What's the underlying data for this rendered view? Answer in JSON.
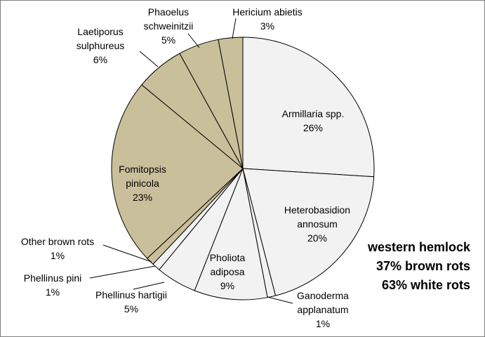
{
  "chart_data": {
    "type": "pie",
    "title": "",
    "slices": [
      {
        "label_lines": [
          "Armillaria spp."
        ],
        "pct_label": "26%",
        "value": 26,
        "rot": "white",
        "color": "#f2f2f2"
      },
      {
        "label_lines": [
          "Heterobasidion",
          "annosum"
        ],
        "pct_label": "20%",
        "value": 20,
        "rot": "white",
        "color": "#f2f2f2"
      },
      {
        "label_lines": [
          "Ganoderma",
          "applanatum"
        ],
        "pct_label": "1%",
        "value": 1,
        "rot": "white",
        "color": "#f2f2f2"
      },
      {
        "label_lines": [
          "Pholiota",
          "adiposa"
        ],
        "pct_label": "9%",
        "value": 9,
        "rot": "white",
        "color": "#f2f2f2"
      },
      {
        "label_lines": [
          "Phellinus hartigii"
        ],
        "pct_label": "5%",
        "value": 5,
        "rot": "white",
        "color": "#f2f2f2"
      },
      {
        "label_lines": [
          "Phellinus pini"
        ],
        "pct_label": "1%",
        "value": 1,
        "rot": "white",
        "color": "#f2f2f2"
      },
      {
        "label_lines": [
          "Other brown rots"
        ],
        "pct_label": "1%",
        "value": 1,
        "rot": "brown",
        "color": "#c9c09b"
      },
      {
        "label_lines": [
          "Fomitopsis",
          "pinicola"
        ],
        "pct_label": "23%",
        "value": 23,
        "rot": "brown",
        "color": "#c9c09b"
      },
      {
        "label_lines": [
          "Laetiporus",
          "sulphureus"
        ],
        "pct_label": "6%",
        "value": 6,
        "rot": "brown",
        "color": "#c9c09b"
      },
      {
        "label_lines": [
          "Phaoelus",
          "schweinitzii"
        ],
        "pct_label": "5%",
        "value": 5,
        "rot": "brown",
        "color": "#c9c09b"
      },
      {
        "label_lines": [
          "Hericium abietis"
        ],
        "pct_label": "3%",
        "value": 3,
        "rot": "brown",
        "color": "#c9c09b"
      }
    ],
    "annotation_lines": [
      "western hemlock",
      "37% brown rots",
      "63% white rots"
    ],
    "legend": "none",
    "start": "12 o'clock, clockwise"
  }
}
